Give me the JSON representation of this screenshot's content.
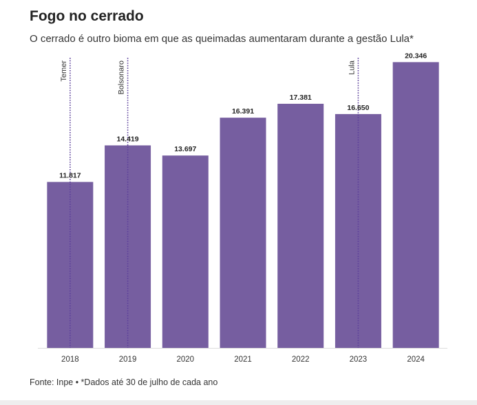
{
  "header": {
    "title": "Fogo no cerrado",
    "subtitle": "O cerrado é outro bioma em que as queimadas aumentaram durante a gestão Lula*"
  },
  "footer": {
    "source": "Fonte: Inpe • *Dados até 30 de julho de cada ano"
  },
  "colors": {
    "bar": "#765ea0",
    "marker_line": "#5b3f9a",
    "axis": "#dddddd",
    "label": "#222222",
    "tick": "#333333"
  },
  "chart_data": {
    "type": "bar",
    "title": "Fogo no cerrado",
    "categories": [
      "2018",
      "2019",
      "2020",
      "2021",
      "2022",
      "2023",
      "2024"
    ],
    "values": [
      11817,
      14419,
      13697,
      16391,
      17381,
      16650,
      20346
    ],
    "value_labels": [
      "11.817",
      "14.419",
      "13.697",
      "16.391",
      "17.381",
      "16.650",
      "20.346"
    ],
    "ylim": [
      0,
      21000
    ],
    "xlabel": "",
    "ylabel": "",
    "grid": false,
    "annotations": [
      {
        "label": "Temer",
        "category": "2018"
      },
      {
        "label": "Bolsonaro",
        "category": "2019"
      },
      {
        "label": "Lula",
        "category": "2023"
      }
    ]
  }
}
